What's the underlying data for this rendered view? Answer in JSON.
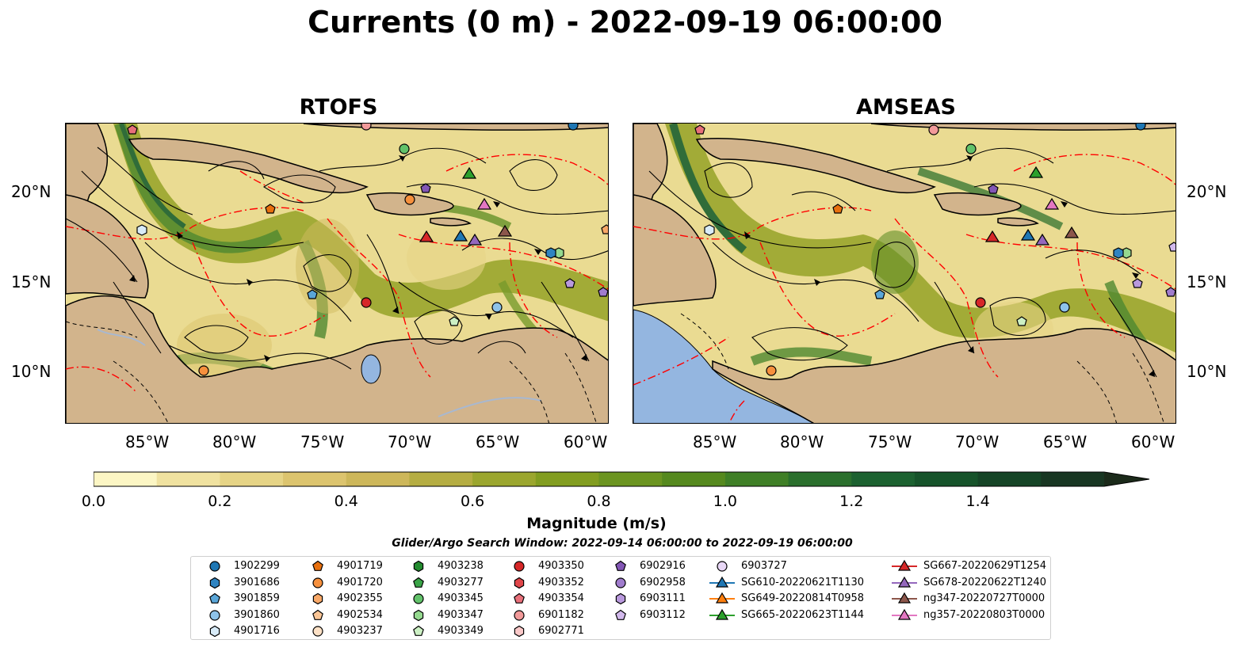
{
  "title": "Currents (0 m) - 2022-09-19 06:00:00",
  "panels": [
    {
      "title": "RTOFS"
    },
    {
      "title": "AMSEAS"
    }
  ],
  "axes": {
    "lon_labels": [
      "85°W",
      "80°W",
      "75°W",
      "70°W",
      "65°W",
      "60°W"
    ],
    "lat_labels": [
      "20°N",
      "15°N",
      "10°N"
    ]
  },
  "colorbar": {
    "label": "Magnitude (m/s)",
    "ticks": [
      "0.0",
      "0.2",
      "0.4",
      "0.6",
      "0.8",
      "1.0",
      "1.2",
      "1.4"
    ],
    "min": 0.0,
    "max": 1.6,
    "extend": "max",
    "colors": [
      "#fcf6c4",
      "#f0e2a0",
      "#e6d486",
      "#dcc46e",
      "#cdb75a",
      "#b5ad42",
      "#9ba62e",
      "#829d20",
      "#6b9420",
      "#55891e",
      "#3f7f26",
      "#2a6f2c",
      "#1c6130",
      "#16532a",
      "#154426",
      "#183622",
      "#1b2a1a"
    ]
  },
  "search_window": "Glider/Argo Search Window: 2022-09-14 06:00:00 to 2022-09-19 06:00:00",
  "legend": {
    "columns": [
      [
        {
          "label": "1902299",
          "shape": "circle",
          "color": "#1f77b4"
        },
        {
          "label": "3901686",
          "shape": "hexagon",
          "color": "#2f84c1"
        },
        {
          "label": "3901859",
          "shape": "pentagon",
          "color": "#5aa6d8"
        },
        {
          "label": "3901860",
          "shape": "circle",
          "color": "#8ec3ea"
        },
        {
          "label": "4901716",
          "shape": "hexagon",
          "color": "#d8ebf8"
        }
      ],
      [
        {
          "label": "4901719",
          "shape": "pentagon",
          "color": "#e8700e"
        },
        {
          "label": "4901720",
          "shape": "circle",
          "color": "#f6903d"
        },
        {
          "label": "4902355",
          "shape": "hexagon",
          "color": "#f8a868"
        },
        {
          "label": "4902534",
          "shape": "pentagon",
          "color": "#fbc696"
        },
        {
          "label": "4903237",
          "shape": "circle",
          "color": "#fde1c6"
        }
      ],
      [
        {
          "label": "4903238",
          "shape": "hexagon",
          "color": "#238b2f"
        },
        {
          "label": "4903277",
          "shape": "pentagon",
          "color": "#3aa447"
        },
        {
          "label": "4903345",
          "shape": "circle",
          "color": "#62c26a"
        },
        {
          "label": "4903347",
          "shape": "hexagon",
          "color": "#95d98f"
        },
        {
          "label": "4903349",
          "shape": "pentagon",
          "color": "#ccf0c4"
        }
      ],
      [
        {
          "label": "4903350",
          "shape": "circle",
          "color": "#d62728"
        },
        {
          "label": "4903352",
          "shape": "hexagon",
          "color": "#e0464a"
        },
        {
          "label": "4903354",
          "shape": "pentagon",
          "color": "#e8707a"
        },
        {
          "label": "6901182",
          "shape": "circle",
          "color": "#f29a9a"
        },
        {
          "label": "6902771",
          "shape": "hexagon",
          "color": "#f9c8c8"
        }
      ],
      [
        {
          "label": "6902916",
          "shape": "pentagon",
          "color": "#8357b5"
        },
        {
          "label": "6902958",
          "shape": "circle",
          "color": "#a07ccd"
        },
        {
          "label": "6903111",
          "shape": "hexagon",
          "color": "#b999dd"
        },
        {
          "label": "6903112",
          "shape": "pentagon",
          "color": "#d2b9ec"
        }
      ],
      [
        {
          "label": "6903727",
          "shape": "circle",
          "color": "#e8d7f6"
        },
        {
          "label": "SG610-20220621T1130",
          "shape": "triangle",
          "color": "#1f77b4",
          "line": true
        },
        {
          "label": "SG649-20220814T0958",
          "shape": "triangle",
          "color": "#ff7f0e",
          "line": true
        },
        {
          "label": "SG665-20220623T1144",
          "shape": "triangle",
          "color": "#2ca02c",
          "line": true
        }
      ],
      [
        {
          "label": "SG667-20220629T1254",
          "shape": "triangle",
          "color": "#d62728",
          "line": true
        },
        {
          "label": "SG678-20220622T1240",
          "shape": "triangle",
          "color": "#9467bd",
          "line": true
        },
        {
          "label": "ng347-20220727T0000",
          "shape": "triangle",
          "color": "#8c564b",
          "line": true
        },
        {
          "label": "ng357-20220803T0000",
          "shape": "triangle",
          "color": "#e377c2",
          "line": true
        }
      ]
    ]
  },
  "map_colors": {
    "land": "#d2b48c",
    "ocean_low": "#f2e6a6",
    "ocean_mid": "#c9c05a",
    "jet": "#4f8c2a",
    "jet_core": "#2b6a2a",
    "eez": "#ff0000",
    "pacific": "#94b6e0"
  }
}
